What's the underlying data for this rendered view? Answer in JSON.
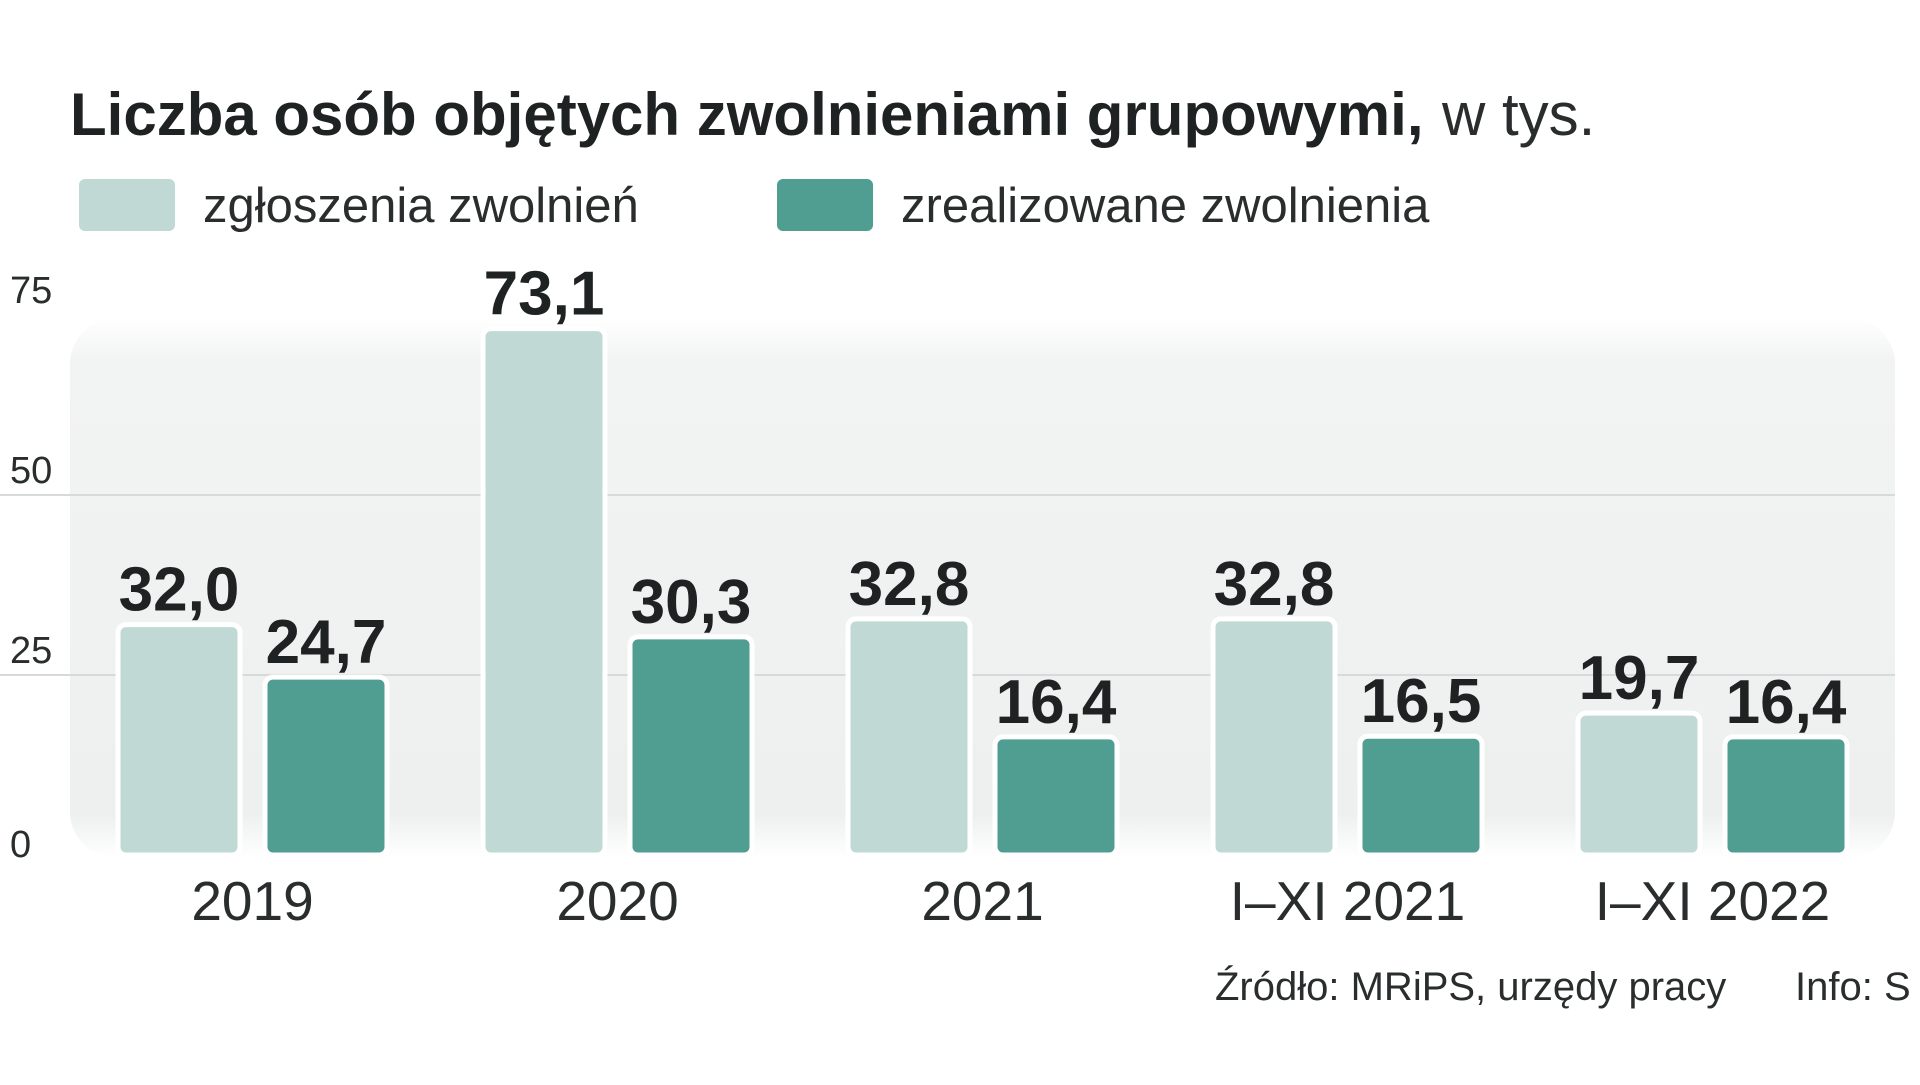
{
  "title": {
    "bold": "Liczba osób objętych zwolnieniami grupowymi,",
    "unit": "w tys."
  },
  "legend": [
    {
      "label": "zgłoszenia zwolnień",
      "color": "#c0d9d5"
    },
    {
      "label": "zrealizowane zwolnienia",
      "color": "#509e91"
    }
  ],
  "source": {
    "text": "Źródło: MRiPS, urzędy pracy",
    "info": "Info: S"
  },
  "chart_data": {
    "type": "bar",
    "title": "Liczba osób objętych zwolnieniami grupowymi, w tys.",
    "categories": [
      "2019",
      "2020",
      "2021",
      "I–XI 2021",
      "I–XI 2022"
    ],
    "series": [
      {
        "name": "zgłoszenia zwolnień",
        "values": [
          32.0,
          73.1,
          32.8,
          32.8,
          19.7
        ],
        "labels": [
          "32,0",
          "73,1",
          "32,8",
          "32,8",
          "19,7"
        ],
        "color": "#c0d9d5"
      },
      {
        "name": "zrealizowane zwolnienia",
        "values": [
          24.7,
          30.3,
          16.4,
          16.5,
          16.4
        ],
        "labels": [
          "24,7",
          "30,3",
          "16,4",
          "16,5",
          "16,4"
        ],
        "color": "#509e91"
      }
    ],
    "yticks": [
      0,
      25,
      50,
      75
    ],
    "ytick_labels": [
      "0",
      "25",
      "50",
      "75"
    ],
    "ylim": [
      0,
      75
    ],
    "xlabel": "",
    "ylabel": "",
    "grid": true,
    "legend_position": "top-left"
  }
}
